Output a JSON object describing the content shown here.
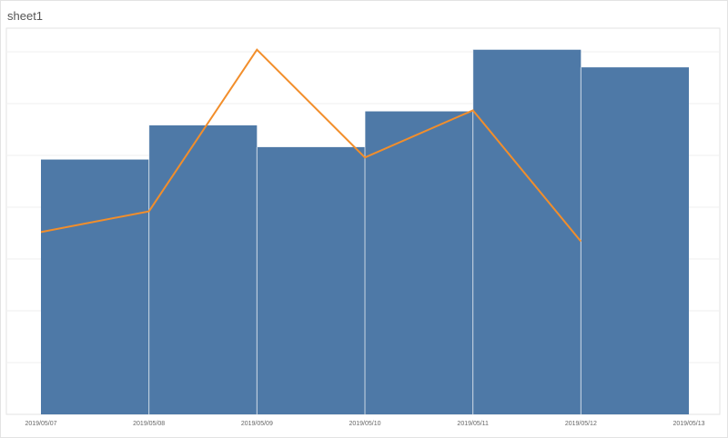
{
  "sheet": {
    "title": "sheet1"
  },
  "colors": {
    "bar": "#4e79a7",
    "line": "#f28e2b",
    "grid": "#efefef",
    "border": "#e3e3e3",
    "separator": "#ffffff"
  },
  "chart_data": {
    "type": "bar",
    "title": "",
    "xlabel": "",
    "ylabel": "",
    "grid": true,
    "x_ticks": [
      "2019/05/07",
      "2019/05/08",
      "2019/05/09",
      "2019/05/10",
      "2019/05/11",
      "2019/05/12",
      "2019/05/13"
    ],
    "ylim": [
      0,
      7
    ],
    "bars": [
      {
        "start": "2019/05/07",
        "end": "2019/05/08",
        "value": 4.92
      },
      {
        "start": "2019/05/08",
        "end": "2019/05/09",
        "value": 5.58
      },
      {
        "start": "2019/05/09",
        "end": "2019/05/10",
        "value": 5.16
      },
      {
        "start": "2019/05/10",
        "end": "2019/05/11",
        "value": 5.85
      },
      {
        "start": "2019/05/11",
        "end": "2019/05/12",
        "value": 7.04
      },
      {
        "start": "2019/05/12",
        "end": "2019/05/13",
        "value": 6.7
      }
    ],
    "line": {
      "x": [
        "2019/05/07",
        "2019/05/08",
        "2019/05/09",
        "2019/05/10",
        "2019/05/11",
        "2019/05/12"
      ],
      "values": [
        3.52,
        3.92,
        7.04,
        4.96,
        5.87,
        3.34
      ]
    }
  }
}
